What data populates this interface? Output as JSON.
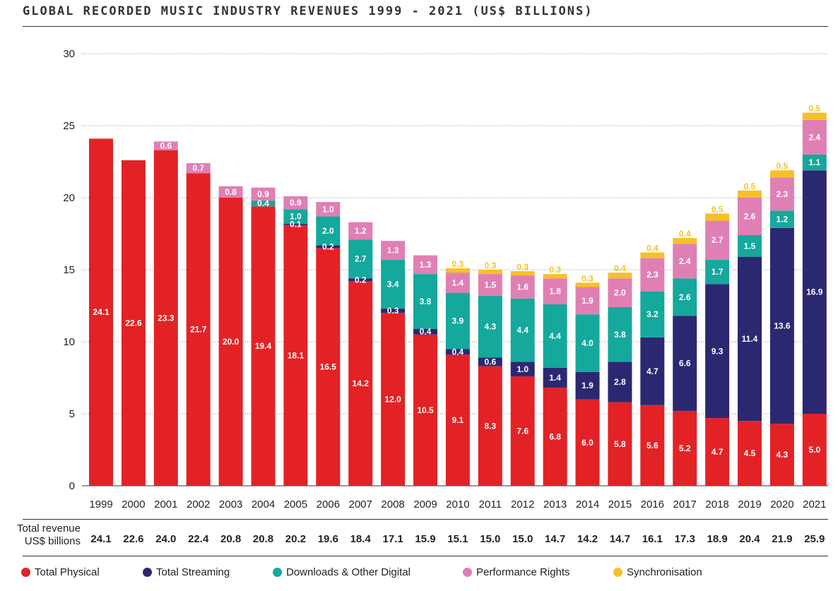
{
  "chart_data": {
    "type": "bar",
    "title": "GLOBAL RECORDED MUSIC INDUSTRY REVENUES 1999 - 2021 (US$ BILLIONS)",
    "ylim": [
      0,
      30
    ],
    "yticks": [
      0,
      5,
      10,
      15,
      20,
      25,
      30
    ],
    "grid": true,
    "categories": [
      "1999",
      "2000",
      "2001",
      "2002",
      "2003",
      "2004",
      "2005",
      "2006",
      "2007",
      "2008",
      "2009",
      "2010",
      "2011",
      "2012",
      "2013",
      "2014",
      "2015",
      "2016",
      "2017",
      "2018",
      "2019",
      "2020",
      "2021"
    ],
    "series": [
      {
        "name": "Total Physical",
        "color": "#e32226",
        "values": [
          24.1,
          22.6,
          23.3,
          21.7,
          20.0,
          19.4,
          18.1,
          16.5,
          14.2,
          12.0,
          10.5,
          9.1,
          8.3,
          7.6,
          6.8,
          6.0,
          5.8,
          5.6,
          5.2,
          4.7,
          4.5,
          4.3,
          5.0
        ]
      },
      {
        "name": "Total Streaming",
        "color": "#2b2872",
        "values": [
          null,
          null,
          null,
          null,
          null,
          null,
          0.1,
          0.2,
          0.2,
          0.3,
          0.4,
          0.4,
          0.6,
          1.0,
          1.4,
          1.9,
          2.8,
          4.7,
          6.6,
          9.3,
          11.4,
          13.6,
          16.9
        ]
      },
      {
        "name": "Downloads & Other Digital",
        "color": "#15a89c",
        "values": [
          null,
          null,
          null,
          null,
          null,
          0.4,
          1.0,
          2.0,
          2.7,
          3.4,
          3.8,
          3.9,
          4.3,
          4.4,
          4.4,
          4.0,
          3.8,
          3.2,
          2.6,
          1.7,
          1.5,
          1.2,
          1.1
        ]
      },
      {
        "name": "Performance Rights",
        "color": "#e07fb4",
        "values": [
          null,
          null,
          0.6,
          0.7,
          0.8,
          0.9,
          0.9,
          1.0,
          1.2,
          1.3,
          1.3,
          1.4,
          1.5,
          1.6,
          1.8,
          1.9,
          2.0,
          2.3,
          2.4,
          2.7,
          2.6,
          2.3,
          2.4
        ]
      },
      {
        "name": "Synchronisation",
        "color": "#f6c126",
        "values": [
          null,
          null,
          null,
          null,
          null,
          null,
          null,
          null,
          null,
          null,
          null,
          0.3,
          0.3,
          0.3,
          0.3,
          0.3,
          0.4,
          0.4,
          0.4,
          0.5,
          0.5,
          0.5,
          0.5
        ]
      }
    ],
    "totals_label_line1": "Total revenue",
    "totals_label_line2": "US$ billions",
    "totals": [
      "24.1",
      "22.6",
      "24.0",
      "22.4",
      "20.8",
      "20.8",
      "20.2",
      "19.6",
      "18.4",
      "17.1",
      "15.9",
      "15.1",
      "15.0",
      "15.0",
      "14.7",
      "14.2",
      "14.7",
      "16.1",
      "17.3",
      "18.9",
      "20.4",
      "21.9",
      "25.9"
    ],
    "legend_position": "bottom"
  }
}
